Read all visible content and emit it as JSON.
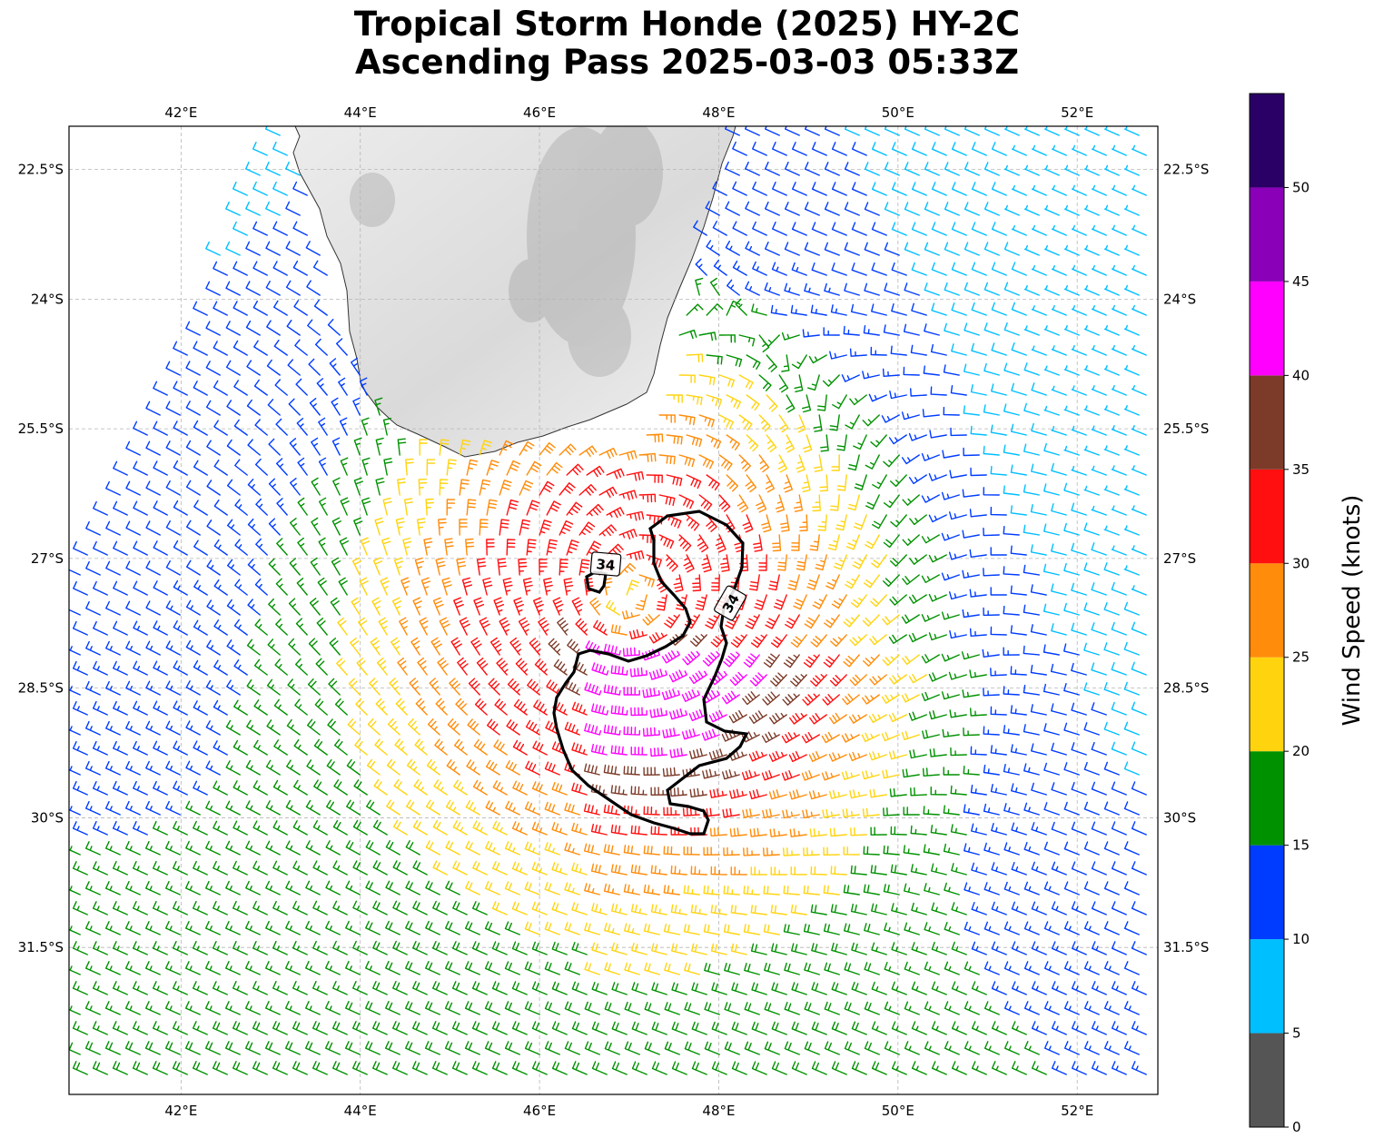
{
  "title": {
    "line1": "Tropical Storm Honde (2025) HY-2C",
    "line2": "Ascending Pass 2025-03-03 05:33Z"
  },
  "map": {
    "lon_range": [
      40.75,
      52.9
    ],
    "lat_range": [
      -33.2,
      -22.0
    ],
    "lon_ticks": [
      {
        "value": 42,
        "label": "42°E"
      },
      {
        "value": 44,
        "label": "44°E"
      },
      {
        "value": 46,
        "label": "46°E"
      },
      {
        "value": 48,
        "label": "48°E"
      },
      {
        "value": 50,
        "label": "50°E"
      },
      {
        "value": 52,
        "label": "52°E"
      }
    ],
    "lat_ticks": [
      {
        "value": -22.5,
        "label": "22.5°S"
      },
      {
        "value": -24,
        "label": "24°S"
      },
      {
        "value": -25.5,
        "label": "25.5°S"
      },
      {
        "value": -27,
        "label": "27°S"
      },
      {
        "value": -28.5,
        "label": "28.5°S"
      },
      {
        "value": -30,
        "label": "30°S"
      },
      {
        "value": -31.5,
        "label": "31.5°S"
      }
    ],
    "gridlines": true,
    "land": "Madagascar (shaded terrain)",
    "storm_center": {
      "lon": 47.0,
      "lat": -27.5
    },
    "wind_radius_contour": {
      "value_kt": 34,
      "labels": [
        "34",
        "34"
      ]
    }
  },
  "colorbar": {
    "label": "Wind Speed (knots)",
    "bins": [
      {
        "from": 0,
        "to": 5,
        "color": "#555555"
      },
      {
        "from": 5,
        "to": 10,
        "color": "#00bfff"
      },
      {
        "from": 10,
        "to": 15,
        "color": "#003cff"
      },
      {
        "from": 15,
        "to": 20,
        "color": "#009100"
      },
      {
        "from": 20,
        "to": 25,
        "color": "#ffd40f"
      },
      {
        "from": 25,
        "to": 30,
        "color": "#ff8c0a"
      },
      {
        "from": 30,
        "to": 35,
        "color": "#ff0f0f"
      },
      {
        "from": 35,
        "to": 40,
        "color": "#7c3a28"
      },
      {
        "from": 40,
        "to": 45,
        "color": "#ff00ff"
      },
      {
        "from": 45,
        "to": 50,
        "color": "#8a00b8"
      },
      {
        "from": 50,
        "to": 55,
        "color": "#2b0066"
      }
    ],
    "tick_labels": [
      "0",
      "5",
      "10",
      "15",
      "20",
      "25",
      "30",
      "35",
      "40",
      "45",
      "50"
    ]
  }
}
